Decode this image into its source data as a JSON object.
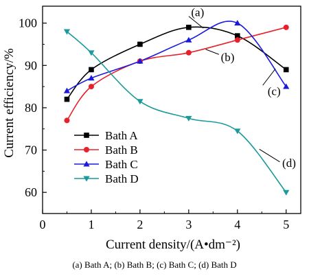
{
  "chart_data": {
    "type": "line",
    "xlabel": "Current density/(A•dm⁻²)",
    "ylabel": "Current efficiency/%",
    "xlim": [
      0,
      5.3
    ],
    "ylim": [
      55,
      104
    ],
    "x_ticks": [
      0,
      1,
      2,
      3,
      4,
      5
    ],
    "y_ticks": [
      60,
      70,
      80,
      90,
      100
    ],
    "legend_position": "lower-left",
    "grid": false,
    "series": [
      {
        "name": "Bath A",
        "color": "#000000",
        "marker": "square",
        "x": [
          0.5,
          1,
          2,
          3,
          4,
          5
        ],
        "y": [
          82,
          89,
          95,
          99,
          97,
          89
        ],
        "annotation": "(a)"
      },
      {
        "name": "Bath B",
        "color": "#e8202a",
        "marker": "circle",
        "x": [
          0.5,
          1,
          2,
          3,
          4,
          5
        ],
        "y": [
          77,
          85,
          91,
          93,
          96,
          99
        ],
        "annotation": "(b)"
      },
      {
        "name": "Bath C",
        "color": "#1a1adf",
        "marker": "triangle-up",
        "x": [
          0.5,
          1,
          2,
          3,
          4,
          5
        ],
        "y": [
          84,
          87,
          91,
          96,
          100,
          85
        ],
        "annotation": "(c)"
      },
      {
        "name": "Bath D",
        "color": "#1a9a9a",
        "marker": "triangle-down",
        "x": [
          0.5,
          1,
          2,
          3,
          4,
          5
        ],
        "y": [
          98,
          93,
          81.5,
          77.5,
          74.5,
          60
        ],
        "annotation": "(d)"
      }
    ]
  },
  "caption": "(a) Bath A; (b) Bath B; (c) Bath C; (d) Bath D"
}
